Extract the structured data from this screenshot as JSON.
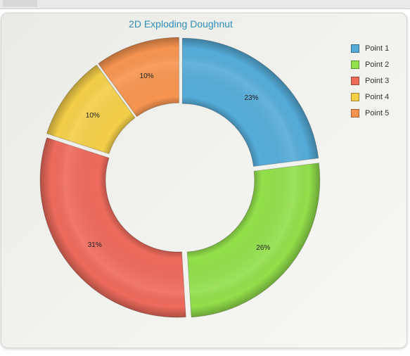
{
  "chart_data": {
    "type": "pie",
    "variant": "exploded-doughnut",
    "title": "2D Exploding Doughnut",
    "categories": [
      "Point 1",
      "Point 2",
      "Point 3",
      "Point 4",
      "Point 5"
    ],
    "values": [
      23,
      26,
      31,
      10,
      10
    ],
    "labels": [
      "23%",
      "26%",
      "31%",
      "10%",
      "10%"
    ],
    "colors": [
      "#55acd9",
      "#92e04b",
      "#ee6b5c",
      "#f4cf48",
      "#f79450"
    ],
    "legend": "top-right"
  }
}
